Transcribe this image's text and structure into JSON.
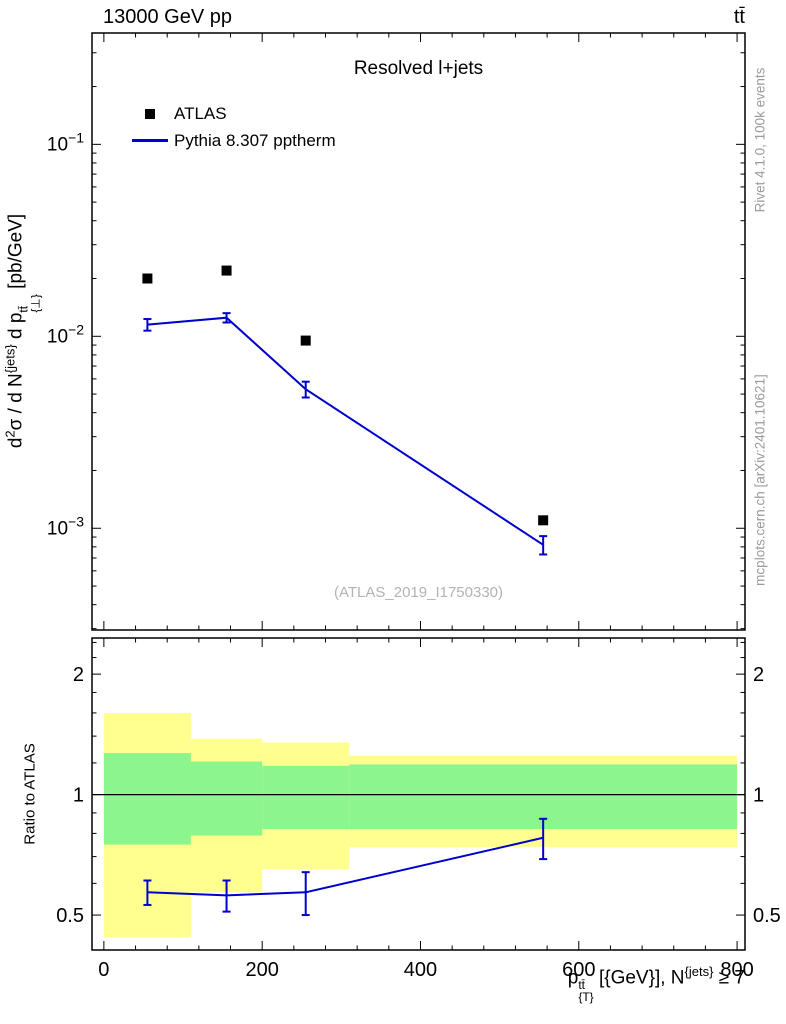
{
  "header": {
    "left": "13000 GeV pp",
    "right": "tt̄"
  },
  "side_labels": {
    "top_right": "Rivet 4.1.0, 100k events",
    "bottom_right": "mcplots.cern.ch [arXiv:2401.10621]"
  },
  "plot": {
    "title": "Resolved l+jets",
    "watermark": "(ATLAS_2019_I1750330)",
    "ratio_label": "Ratio to ATLAS",
    "legend": [
      {
        "label": "ATLAS"
      },
      {
        "label": "Pythia 8.307 pptherm"
      }
    ],
    "ylabel_parts": {
      "d": "d",
      "sup_2": "2",
      "mid1": "σ / d N",
      "sup_jets": "{jets}",
      "mid2": " d p",
      "sup_tt": "tt̄",
      "sub_perp": "{⊥}",
      "end": " [pb/GeV]"
    },
    "xlabel_parts": {
      "base": "p",
      "sup": "tt̄",
      "sub": "{T}",
      "mid": " [{GeV}], N",
      "sup2": "{jets}",
      "end": " ≥ 7"
    }
  },
  "chart_data": {
    "type": "line",
    "title": "Resolved l+jets",
    "xlabel": "p_{T}^{tt̄} [{GeV}], N^{jets} ≥ 7",
    "ylabel": "d²σ / d N^{jets} d p_{⊥}^{tt̄} [pb/GeV]",
    "x_range": [
      -15,
      810
    ],
    "x_ticks": [
      0,
      200,
      400,
      600,
      800
    ],
    "main_y_log_range": [
      -3.53,
      -0.42
    ],
    "main_y_ticks": [
      {
        "v": 0.1,
        "exp": "−1"
      },
      {
        "v": 0.01,
        "exp": "−2"
      },
      {
        "v": 0.001,
        "exp": "−3"
      }
    ],
    "ratio_log2_range": [
      -1.29,
      1.3
    ],
    "ratio_ticks": [
      0.5,
      1,
      2
    ],
    "colors": {
      "yellow_band": "#feff8f",
      "green_band": "#8df58d",
      "line": "#0000cc",
      "atlas": "#000000"
    },
    "series": {
      "atlas": {
        "label": "ATLAS",
        "marker": "square",
        "color": "#000000",
        "x": [
          55,
          155,
          255,
          555
        ],
        "y": [
          0.02,
          0.022,
          0.0095,
          0.0011
        ]
      },
      "pythia": {
        "label": "Pythia 8.307 pptherm",
        "color": "#0000cc",
        "x": [
          55,
          155,
          255,
          555
        ],
        "y": [
          0.0115,
          0.0125,
          0.0053,
          0.00082
        ],
        "yerr": [
          0.0008,
          0.0007,
          0.0005,
          9e-05
        ]
      }
    },
    "ratio": {
      "x": [
        55,
        155,
        255,
        555
      ],
      "y": [
        0.57,
        0.56,
        0.57,
        0.78
      ],
      "yerr": [
        0.04,
        0.05,
        0.07,
        0.09
      ],
      "line_at": 1,
      "bands": [
        {
          "x0": 0,
          "x1": 110,
          "yellow": [
            0.44,
            1.6
          ],
          "green": [
            0.75,
            1.27
          ]
        },
        {
          "x0": 110,
          "x1": 200,
          "yellow": [
            0.57,
            1.38
          ],
          "green": [
            0.79,
            1.21
          ]
        },
        {
          "x0": 200,
          "x1": 310,
          "yellow": [
            0.65,
            1.35
          ],
          "green": [
            0.82,
            1.18
          ]
        },
        {
          "x0": 310,
          "x1": 800,
          "yellow": [
            0.74,
            1.25
          ],
          "green": [
            0.82,
            1.19
          ]
        }
      ]
    }
  }
}
